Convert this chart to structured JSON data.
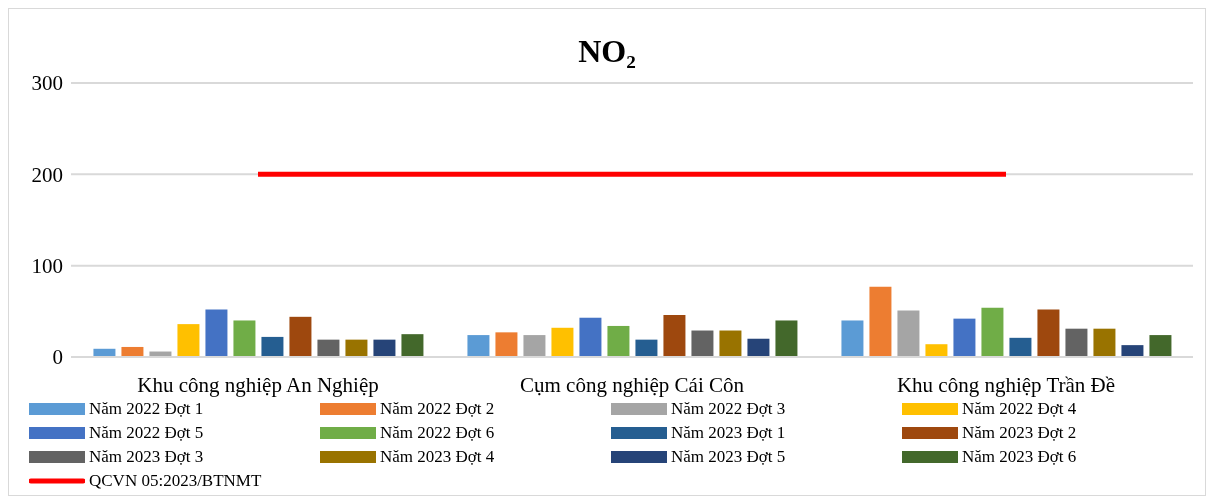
{
  "chart_data": {
    "type": "bar",
    "title": "NO₂",
    "categories": [
      "Khu công nghiệp An Nghiệp",
      "Cụm công nghiệp Cái Côn",
      "Khu công nghiệp Trần Đề"
    ],
    "series": [
      {
        "name": "Năm 2022 Đợt 1",
        "color": "#5b9bd5",
        "values": [
          9,
          24,
          40
        ]
      },
      {
        "name": "Năm 2022 Đợt 2",
        "color": "#ed7d31",
        "values": [
          11,
          27,
          77
        ]
      },
      {
        "name": "Năm 2022 Đợt 3",
        "color": "#a5a5a5",
        "values": [
          6,
          24,
          51
        ]
      },
      {
        "name": "Năm 2022 Đợt 4",
        "color": "#ffc000",
        "values": [
          36,
          32,
          14
        ]
      },
      {
        "name": "Năm 2022 Đợt 5",
        "color": "#4472c4",
        "values": [
          52,
          43,
          42
        ]
      },
      {
        "name": "Năm 2022 Đợt 6",
        "color": "#70ad47",
        "values": [
          40,
          34,
          54
        ]
      },
      {
        "name": "Năm 2023 Đợt 1",
        "color": "#255e91",
        "values": [
          22,
          19,
          21
        ]
      },
      {
        "name": "Năm 2023 Đợt 2",
        "color": "#9e480e",
        "values": [
          44,
          46,
          52
        ]
      },
      {
        "name": "Năm 2023 Đợt 3",
        "color": "#636363",
        "values": [
          19,
          29,
          31
        ]
      },
      {
        "name": "Năm 2023 Đợt 4",
        "color": "#997300",
        "values": [
          19,
          29,
          31
        ]
      },
      {
        "name": "Năm 2023 Đợt 5",
        "color": "#264478",
        "values": [
          19,
          20,
          13
        ]
      },
      {
        "name": "Năm 2023 Đợt 6",
        "color": "#43682b",
        "values": [
          25,
          40,
          24
        ]
      },
      {
        "name": "QCVN 05:2023/BTNMT",
        "color": "#ff0000",
        "type": "line",
        "values": [
          200,
          200,
          200
        ]
      }
    ],
    "ylim": [
      0,
      300
    ],
    "yticks": [
      0,
      100,
      200,
      300
    ],
    "grid": "y",
    "legend": "bottom",
    "marker": "none"
  }
}
